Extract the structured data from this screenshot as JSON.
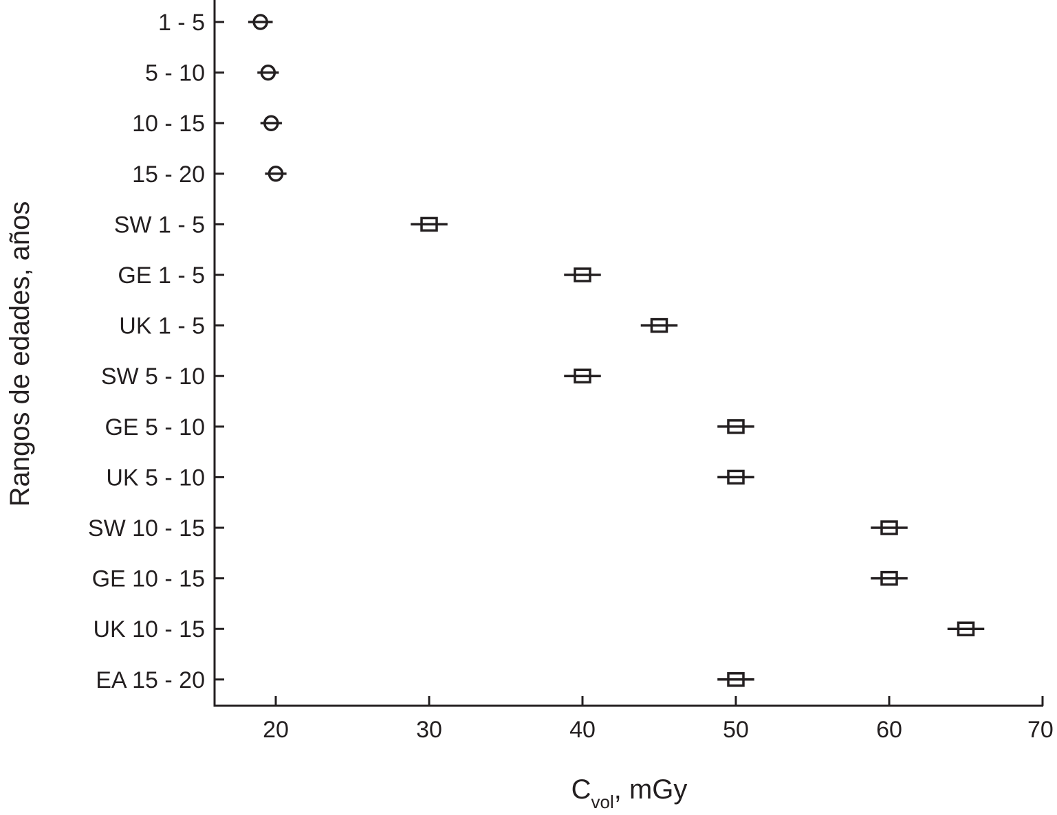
{
  "chart_data": {
    "type": "scatter",
    "xlabel": {
      "main": "C",
      "subscript": "vol",
      "suffix": ", mGy"
    },
    "ylabel": "Rangos de edades, años",
    "xlim": [
      16,
      70
    ],
    "xticks": [
      20,
      30,
      40,
      50,
      60,
      70
    ],
    "grid": false,
    "categories": [
      "1 - 5",
      "5 - 10",
      "10 - 15",
      "15 - 20",
      "SW 1 - 5",
      "GE 1 - 5",
      "UK 1 - 5",
      "SW 5 - 10",
      "GE 5 - 10",
      "UK 5 - 10",
      "SW 10 - 15",
      "GE 10 - 15",
      "UK 10 - 15",
      "EA 15 - 20"
    ],
    "series": [
      {
        "marker": "circle",
        "points": [
          {
            "category": "1 - 5",
            "x": 19.0,
            "err": 0.8
          },
          {
            "category": "5 - 10",
            "x": 19.5,
            "err": 0.7
          },
          {
            "category": "10 - 15",
            "x": 19.7,
            "err": 0.7
          },
          {
            "category": "15 - 20",
            "x": 20.0,
            "err": 0.7
          }
        ]
      },
      {
        "marker": "square",
        "points": [
          {
            "category": "SW 1 - 5",
            "x": 30,
            "err": 1.2
          },
          {
            "category": "GE 1 - 5",
            "x": 40,
            "err": 1.2
          },
          {
            "category": "UK 1 - 5",
            "x": 45,
            "err": 1.2
          },
          {
            "category": "SW 5 - 10",
            "x": 40,
            "err": 1.2
          },
          {
            "category": "GE 5 - 10",
            "x": 50,
            "err": 1.2
          },
          {
            "category": "UK 5 - 10",
            "x": 50,
            "err": 1.2
          },
          {
            "category": "SW 10 - 15",
            "x": 60,
            "err": 1.2
          },
          {
            "category": "GE 10 - 15",
            "x": 60,
            "err": 1.2
          },
          {
            "category": "UK 10 - 15",
            "x": 65,
            "err": 1.2
          },
          {
            "category": "EA 15 - 20",
            "x": 50,
            "err": 1.2
          }
        ]
      }
    ],
    "colors": {
      "ink": "#231f20",
      "background": "#ffffff"
    }
  }
}
